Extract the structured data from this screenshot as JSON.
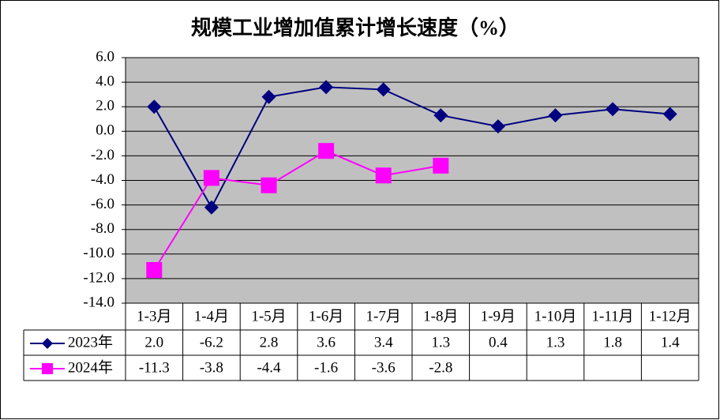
{
  "chart_data": {
    "type": "line",
    "title": "规模工业增加值累计增长速度（%）",
    "categories": [
      "1-3月",
      "1-4月",
      "1-5月",
      "1-6月",
      "1-7月",
      "1-8月",
      "1-9月",
      "1-10月",
      "1-11月",
      "1-12月"
    ],
    "series": [
      {
        "name": "2023年",
        "color": "#000080",
        "marker": "diamond",
        "values": [
          2.0,
          -6.2,
          2.8,
          3.6,
          3.4,
          1.3,
          0.4,
          1.3,
          1.8,
          1.4
        ],
        "value_labels": [
          "2.0",
          "-6.2",
          "2.8",
          "3.6",
          "3.4",
          "1.3",
          "0.4",
          "1.3",
          "1.8",
          "1.4"
        ]
      },
      {
        "name": "2024年",
        "color": "#ff00ff",
        "marker": "square",
        "values": [
          -11.3,
          -3.8,
          -4.4,
          -1.6,
          -3.6,
          -2.8,
          null,
          null,
          null,
          null
        ]
      }
    ],
    "ylim": [
      -14,
      6
    ],
    "yticks": [
      {
        "value": 6,
        "label": "6.0"
      },
      {
        "value": 4,
        "label": "4.0"
      },
      {
        "value": 2,
        "label": "2.0"
      },
      {
        "value": 0,
        "label": "0.0"
      },
      {
        "value": -2,
        "label": "-2.0"
      },
      {
        "value": -4,
        "label": "-4.0"
      },
      {
        "value": -6,
        "label": "-6.0"
      },
      {
        "value": -8,
        "label": "-8.0"
      },
      {
        "value": -10,
        "label": "-10.0"
      },
      {
        "value": -12,
        "label": "-12.0"
      },
      {
        "value": -14,
        "label": "-14.0"
      }
    ],
    "grid": true,
    "plot_background": "#c0c0c0"
  }
}
